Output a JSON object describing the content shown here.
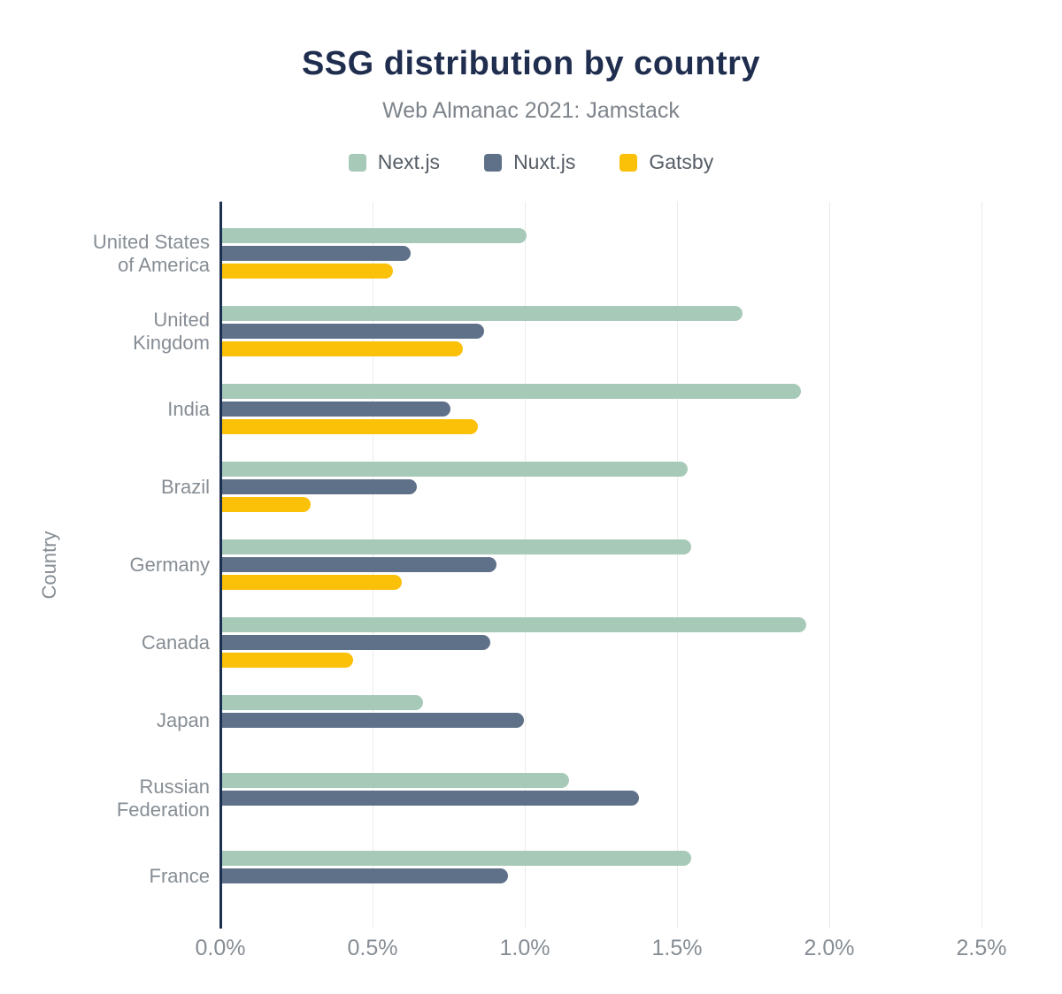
{
  "chart_data": {
    "type": "bar",
    "orientation": "horizontal",
    "title": "SSG distribution by country",
    "subtitle": "Web Almanac 2021: Jamstack",
    "xlabel": "",
    "ylabel": "Country",
    "xlim": [
      0,
      2.5
    ],
    "x_unit": "%",
    "x_tick_step": 0.5,
    "x_tick_labels": [
      "0.0%",
      "0.5%",
      "1.0%",
      "1.5%",
      "2.0%",
      "2.5%"
    ],
    "grid": "vertical",
    "legend_position": "top",
    "axis_color": "#1c3150",
    "gridline_color": "#ebebeb",
    "categories": [
      "United States of America",
      "United Kingdom",
      "India",
      "Brazil",
      "Germany",
      "Canada",
      "Japan",
      "Russian Federation",
      "France"
    ],
    "category_label_lines": [
      [
        "United States",
        "of America"
      ],
      [
        "United",
        "Kingdom"
      ],
      [
        "India"
      ],
      [
        "Brazil"
      ],
      [
        "Germany"
      ],
      [
        "Canada"
      ],
      [
        "Japan"
      ],
      [
        "Russian",
        "Federation"
      ],
      [
        "France"
      ]
    ],
    "series": [
      {
        "name": "Next.js",
        "color": "#a7c9b8",
        "values": [
          1.0,
          1.71,
          1.9,
          1.53,
          1.54,
          1.92,
          0.66,
          1.14,
          1.54
        ]
      },
      {
        "name": "Nuxt.js",
        "color": "#5f7189",
        "values": [
          0.62,
          0.86,
          0.75,
          0.64,
          0.9,
          0.88,
          0.99,
          1.37,
          0.94
        ]
      },
      {
        "name": "Gatsby",
        "color": "#fbc008",
        "values": [
          0.56,
          0.79,
          0.84,
          0.29,
          0.59,
          0.43,
          null,
          null,
          null
        ]
      }
    ]
  },
  "colors": {
    "title": "#1f2d4e",
    "subtitle": "#7d848b",
    "tick_label": "#868d94"
  }
}
